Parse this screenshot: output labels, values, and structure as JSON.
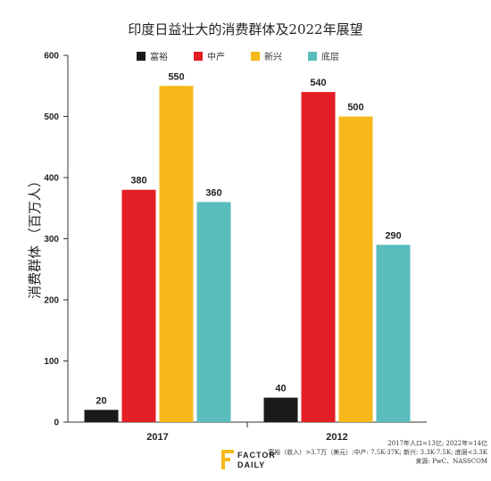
{
  "chart_data": {
    "type": "bar",
    "title": "印度日益壮大的消费群体及2022年展望",
    "ylabel": "消费群体 （百万人）",
    "xlabel": "",
    "categories": [
      "2017",
      "2012"
    ],
    "ylim": [
      0,
      600
    ],
    "yticks": [
      0,
      100,
      200,
      300,
      400,
      500,
      600
    ],
    "grid": false,
    "legend_position": "top",
    "series": [
      {
        "name": "富裕",
        "color": "#1a1a1a",
        "values": [
          20,
          40
        ]
      },
      {
        "name": "中产",
        "color": "#e31e24",
        "values": [
          380,
          540
        ]
      },
      {
        "name": "新兴",
        "color": "#f6b81c",
        "values": [
          550,
          500
        ]
      },
      {
        "name": "底层",
        "color": "#5bbcbc",
        "values": [
          360,
          290
        ]
      }
    ]
  },
  "notes": {
    "line1": "2017年人口=13亿; 2022年=14亿",
    "line2": "富裕（收入）>3.7万（美元）;中产: 7.5K-37K; 新兴: 3.3K-7.5K; 底层<3.3K",
    "line3": "来源: PwC、NASSCOM"
  },
  "logo": {
    "line1": "FACTOR",
    "line2": "DAILY",
    "accent_color": "#f6b81c"
  }
}
